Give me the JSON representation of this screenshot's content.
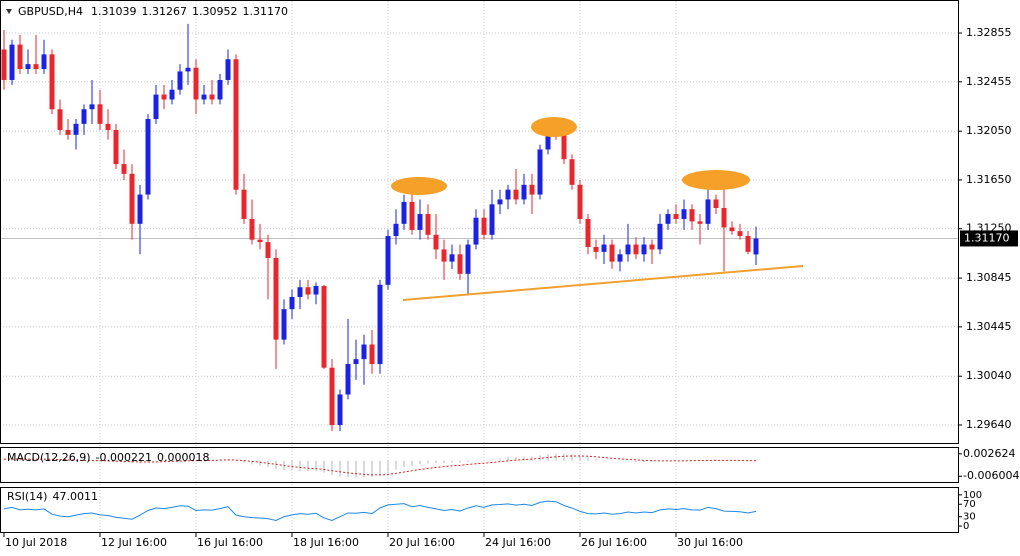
{
  "chart_data": [
    {
      "type": "candlestick",
      "title": "GBPUSD,H4",
      "ohlc_labels": [
        "1.31039",
        "1.31267",
        "1.30952",
        "1.31170"
      ],
      "categories": [
        "10 Jul 2018",
        null,
        null,
        null,
        null,
        null,
        null,
        null,
        null,
        null,
        null,
        null,
        "12 Jul 16:00",
        null,
        null,
        null,
        null,
        null,
        null,
        null,
        null,
        null,
        null,
        null,
        "16 Jul 16:00",
        null,
        null,
        null,
        null,
        null,
        null,
        null,
        null,
        null,
        null,
        null,
        "18 Jul 16:00",
        null,
        null,
        null,
        null,
        null,
        null,
        null,
        null,
        null,
        null,
        null,
        "20 Jul 16:00",
        null,
        null,
        null,
        null,
        null,
        null,
        null,
        null,
        null,
        null,
        null,
        "24 Jul 16:00",
        null,
        null,
        null,
        null,
        null,
        null,
        null,
        null,
        null,
        null,
        null,
        "26 Jul 16:00",
        null,
        null,
        null,
        null,
        null,
        null,
        null,
        null,
        null,
        null,
        null,
        "30 Jul 16:00",
        null,
        null,
        null,
        null,
        null,
        null,
        null,
        null,
        null,
        null
      ],
      "open": [
        1.3272,
        1.3247,
        1.3276,
        1.3256,
        1.326,
        1.3256,
        1.3268,
        1.3223,
        1.3206,
        1.3202,
        1.3211,
        1.3223,
        1.3227,
        1.3211,
        1.3206,
        1.3178,
        1.317,
        1.3129,
        1.3153,
        1.3215,
        1.3235,
        1.3231,
        1.3239,
        1.3254,
        1.3257,
        1.3231,
        1.3235,
        1.3231,
        1.3247,
        1.3264,
        1.3157,
        1.3133,
        1.3116,
        1.3114,
        1.3101,
        1.3034,
        1.3059,
        1.3069,
        1.3077,
        1.3071,
        1.3078,
        1.3011,
        1.2964,
        1.2989,
        1.3014,
        1.3018,
        1.303,
        1.3014,
        1.3079,
        1.3119,
        1.3129,
        1.3147,
        1.3124,
        1.3137,
        1.312,
        1.3108,
        1.3098,
        1.3104,
        1.3088,
        1.3112,
        1.3134,
        1.312,
        1.3145,
        1.3149,
        1.3157,
        1.3149,
        1.3161,
        1.3153,
        1.319,
        1.3206,
        1.3202,
        1.3182,
        1.3161,
        1.3133,
        1.311,
        1.3106,
        1.3112,
        1.3098,
        1.3104,
        1.3112,
        1.3104,
        1.3112,
        1.3108,
        1.3129,
        1.3137,
        1.3133,
        1.3141,
        1.3131,
        1.3129,
        1.3149,
        1.3142,
        1.3126,
        1.3123,
        1.3119,
        1.31039
      ],
      "high": [
        1.3288,
        1.328,
        1.3284,
        1.3272,
        1.3284,
        1.328,
        1.3272,
        1.3231,
        1.3215,
        1.3215,
        1.3227,
        1.3247,
        1.3239,
        1.3223,
        1.3211,
        1.319,
        1.3178,
        1.3161,
        1.3219,
        1.3243,
        1.3243,
        1.3247,
        1.326,
        1.3293,
        1.3264,
        1.3243,
        1.3247,
        1.3252,
        1.3272,
        1.3268,
        1.317,
        1.3149,
        1.3129,
        1.312,
        1.3108,
        1.3067,
        1.3075,
        1.3083,
        1.3083,
        1.3081,
        1.3079,
        1.3018,
        1.2993,
        1.3051,
        1.3034,
        1.3038,
        1.3042,
        1.3083,
        1.3124,
        1.3141,
        1.3153,
        1.3153,
        1.3149,
        1.3145,
        1.3137,
        1.3116,
        1.3112,
        1.3112,
        1.3116,
        1.3141,
        1.3141,
        1.3157,
        1.3157,
        1.3161,
        1.3174,
        1.317,
        1.317,
        1.3194,
        1.3215,
        1.3216,
        1.3211,
        1.3186,
        1.3165,
        1.3137,
        1.3116,
        1.312,
        1.3116,
        1.3108,
        1.3129,
        1.3118,
        1.3118,
        1.3116,
        1.3137,
        1.3141,
        1.3145,
        1.3149,
        1.3145,
        1.3137,
        1.3165,
        1.3153,
        1.3172,
        1.3131,
        1.3129,
        1.3123,
        1.31267
      ],
      "low": [
        1.3239,
        1.3243,
        1.3252,
        1.3252,
        1.3252,
        1.3252,
        1.3219,
        1.3202,
        1.3198,
        1.319,
        1.3202,
        1.3211,
        1.3206,
        1.3198,
        1.3174,
        1.3165,
        1.3116,
        1.3104,
        1.3149,
        1.3211,
        1.3223,
        1.3227,
        1.3235,
        1.3243,
        1.3219,
        1.3227,
        1.3227,
        1.3227,
        1.3243,
        1.3153,
        1.3129,
        1.3112,
        1.3108,
        1.3067,
        1.301,
        1.303,
        1.3051,
        1.3059,
        1.3067,
        1.3063,
        1.301,
        1.2959,
        1.2959,
        1.2985,
        1.3001,
        1.2997,
        1.3006,
        1.3006,
        1.3075,
        1.3112,
        1.3124,
        1.312,
        1.3116,
        1.3116,
        1.31,
        1.3083,
        1.3092,
        1.3083,
        1.3071,
        1.3108,
        1.3116,
        1.3116,
        1.3137,
        1.3141,
        1.3145,
        1.3145,
        1.3137,
        1.3149,
        1.3186,
        1.3198,
        1.3178,
        1.3157,
        1.3129,
        1.3104,
        1.31,
        1.3096,
        1.3092,
        1.309,
        1.3098,
        1.31,
        1.3098,
        1.3096,
        1.3104,
        1.3124,
        1.3129,
        1.3124,
        1.3124,
        1.3112,
        1.3124,
        1.3137,
        1.309,
        1.312,
        1.3116,
        1.3104,
        1.30952
      ],
      "close": [
        1.3247,
        1.3276,
        1.3256,
        1.326,
        1.3256,
        1.3268,
        1.3223,
        1.3206,
        1.3202,
        1.3211,
        1.3223,
        1.3227,
        1.3211,
        1.3206,
        1.3178,
        1.317,
        1.3129,
        1.3153,
        1.3215,
        1.3235,
        1.3231,
        1.3239,
        1.3254,
        1.3257,
        1.3231,
        1.3235,
        1.3231,
        1.3247,
        1.3264,
        1.3157,
        1.3133,
        1.3116,
        1.3114,
        1.3101,
        1.3034,
        1.3059,
        1.3069,
        1.3077,
        1.3071,
        1.3078,
        1.3011,
        1.2964,
        1.2989,
        1.3014,
        1.3018,
        1.303,
        1.3014,
        1.3079,
        1.3119,
        1.3129,
        1.3147,
        1.3124,
        1.3137,
        1.312,
        1.3108,
        1.3098,
        1.3104,
        1.3088,
        1.3112,
        1.3134,
        1.312,
        1.3145,
        1.3149,
        1.3157,
        1.3149,
        1.3161,
        1.3153,
        1.319,
        1.3206,
        1.3202,
        1.3182,
        1.3161,
        1.3133,
        1.311,
        1.3106,
        1.3112,
        1.3098,
        1.3104,
        1.3112,
        1.3104,
        1.3112,
        1.3108,
        1.3129,
        1.3137,
        1.3133,
        1.3141,
        1.3131,
        1.3129,
        1.3149,
        1.3142,
        1.3126,
        1.3123,
        1.3119,
        1.3106,
        1.3117
      ],
      "up_color": "#1a22e6",
      "down_color": "#e8262e",
      "ylim": [
        1.29484,
        1.33126
      ],
      "yticks": [
        1.32855,
        1.32455,
        {
          "value": 1.3205,
          "label": "1.32050"
        },
        {
          "value": 1.3165,
          "label": "1.31650"
        },
        {
          "value": 1.3125,
          "label": "1.31250"
        },
        1.30845,
        1.30445,
        {
          "value": 1.3004,
          "label": "1.30040"
        },
        {
          "value": 1.2964,
          "label": "1.29640"
        }
      ],
      "current_price": {
        "value": 1.3117,
        "label": "1.31170"
      },
      "grid": true
    },
    {
      "type": "macd",
      "title": "MACD(12,26,9)",
      "histogram": [
        0.0005,
        0.0006,
        0.0006,
        0.0006,
        0.0005,
        0.0005,
        0.0003,
        0.0001,
        -0.0001,
        -0.0002,
        -0.0002,
        -0.0002,
        -0.0003,
        -0.0003,
        -0.0005,
        -0.0007,
        -0.001,
        -0.001,
        -0.0007,
        -0.0004,
        -0.0002,
        -0.0001,
        0.0001,
        0.0002,
        0.0002,
        0.0002,
        0.0003,
        0.0004,
        0.0006,
        -0.0001,
        -0.0008,
        -0.0014,
        -0.0019,
        -0.0024,
        -0.0032,
        -0.0036,
        -0.0038,
        -0.0039,
        -0.004,
        -0.004,
        -0.0046,
        -0.0056,
        -0.0061,
        -0.0063,
        -0.0064,
        -0.0063,
        -0.0062,
        -0.0054,
        -0.0043,
        -0.0034,
        -0.0025,
        -0.002,
        -0.0014,
        -0.0011,
        -0.0009,
        -0.0009,
        -0.0008,
        -0.0008,
        -0.0005,
        -0.0001,
        0.0001,
        0.0005,
        0.0008,
        0.0012,
        0.0013,
        0.0015,
        0.0016,
        0.002,
        0.0025,
        0.0027,
        0.0027,
        0.0024,
        0.0018,
        0.0011,
        0.0006,
        0.0003,
        -0.0001,
        -0.0003,
        -0.0004,
        -0.0005,
        -0.0005,
        -0.0005,
        -0.0003,
        -0.0001,
        0,
        0.0002,
        0.0002,
        0.0002,
        0.0004,
        0.0004,
        0.0002,
        0,
        -0.0001,
        -0.0003,
        -0.000221
      ],
      "signal": [
        0.0006,
        0.0006,
        0.0006,
        0.0006,
        0.0006,
        0.0006,
        0.0005,
        0.0004,
        0.0003,
        0.0002,
        0.0001,
        0,
        0,
        -0.0001,
        -0.0002,
        -0.0003,
        -0.0004,
        -0.0005,
        -0.0005,
        -0.0005,
        -0.0004,
        -0.0003,
        -0.0002,
        -0.0001,
        0,
        0,
        0.0001,
        0.0002,
        0.0003,
        0.0002,
        0,
        -0.0003,
        -0.0006,
        -0.001,
        -0.0014,
        -0.0019,
        -0.0023,
        -0.0026,
        -0.0029,
        -0.0031,
        -0.0034,
        -0.0039,
        -0.0043,
        -0.0047,
        -0.005,
        -0.0053,
        -0.0055,
        -0.0055,
        -0.0053,
        -0.0049,
        -0.0044,
        -0.0039,
        -0.0034,
        -0.003,
        -0.0026,
        -0.0023,
        -0.002,
        -0.0018,
        -0.0015,
        -0.0012,
        -0.001,
        -0.0007,
        -0.0004,
        -0.0001,
        0.0002,
        0.0004,
        0.0006,
        0.0009,
        0.0012,
        0.0015,
        0.0017,
        0.0018,
        0.0018,
        0.0017,
        0.0015,
        0.0012,
        0.0009,
        0.0007,
        0.0005,
        0.0003,
        0.0001,
        0,
        -0.0001,
        -0.0001,
        -0.0001,
        -0.0001,
        0,
        0,
        0.0001,
        0.0001,
        0.0001,
        0.0001,
        0.0001,
        0,
        1.8e-05
      ],
      "histogram_color": "#b4b4b4",
      "signal_color": "#e02020",
      "ylim": [
        -0.00863,
        0.00488
      ],
      "yticks": [
        0.002624,
        -0.006004
      ]
    },
    {
      "type": "line",
      "title": "RSI(14)",
      "values": [
        55,
        60,
        52,
        54,
        52,
        55,
        38,
        32,
        30,
        35,
        40,
        42,
        36,
        34,
        28,
        25,
        22,
        35,
        50,
        58,
        56,
        60,
        65,
        64,
        50,
        52,
        51,
        56,
        62,
        35,
        30,
        27,
        26,
        24,
        18,
        30,
        36,
        40,
        38,
        41,
        26,
        18,
        30,
        42,
        41,
        44,
        40,
        58,
        68,
        70,
        72,
        62,
        66,
        60,
        55,
        50,
        53,
        48,
        58,
        65,
        60,
        68,
        69,
        71,
        67,
        70,
        66,
        76,
        80,
        78,
        66,
        58,
        47,
        40,
        39,
        42,
        38,
        40,
        45,
        42,
        45,
        43,
        52,
        55,
        53,
        56,
        52,
        51,
        60,
        56,
        48,
        47,
        46,
        42,
        47.0011
      ],
      "color": "#1e88e5",
      "ylim": [
        -19,
        122
      ],
      "yticks": [
        100,
        70,
        30,
        0
      ]
    }
  ]
}
